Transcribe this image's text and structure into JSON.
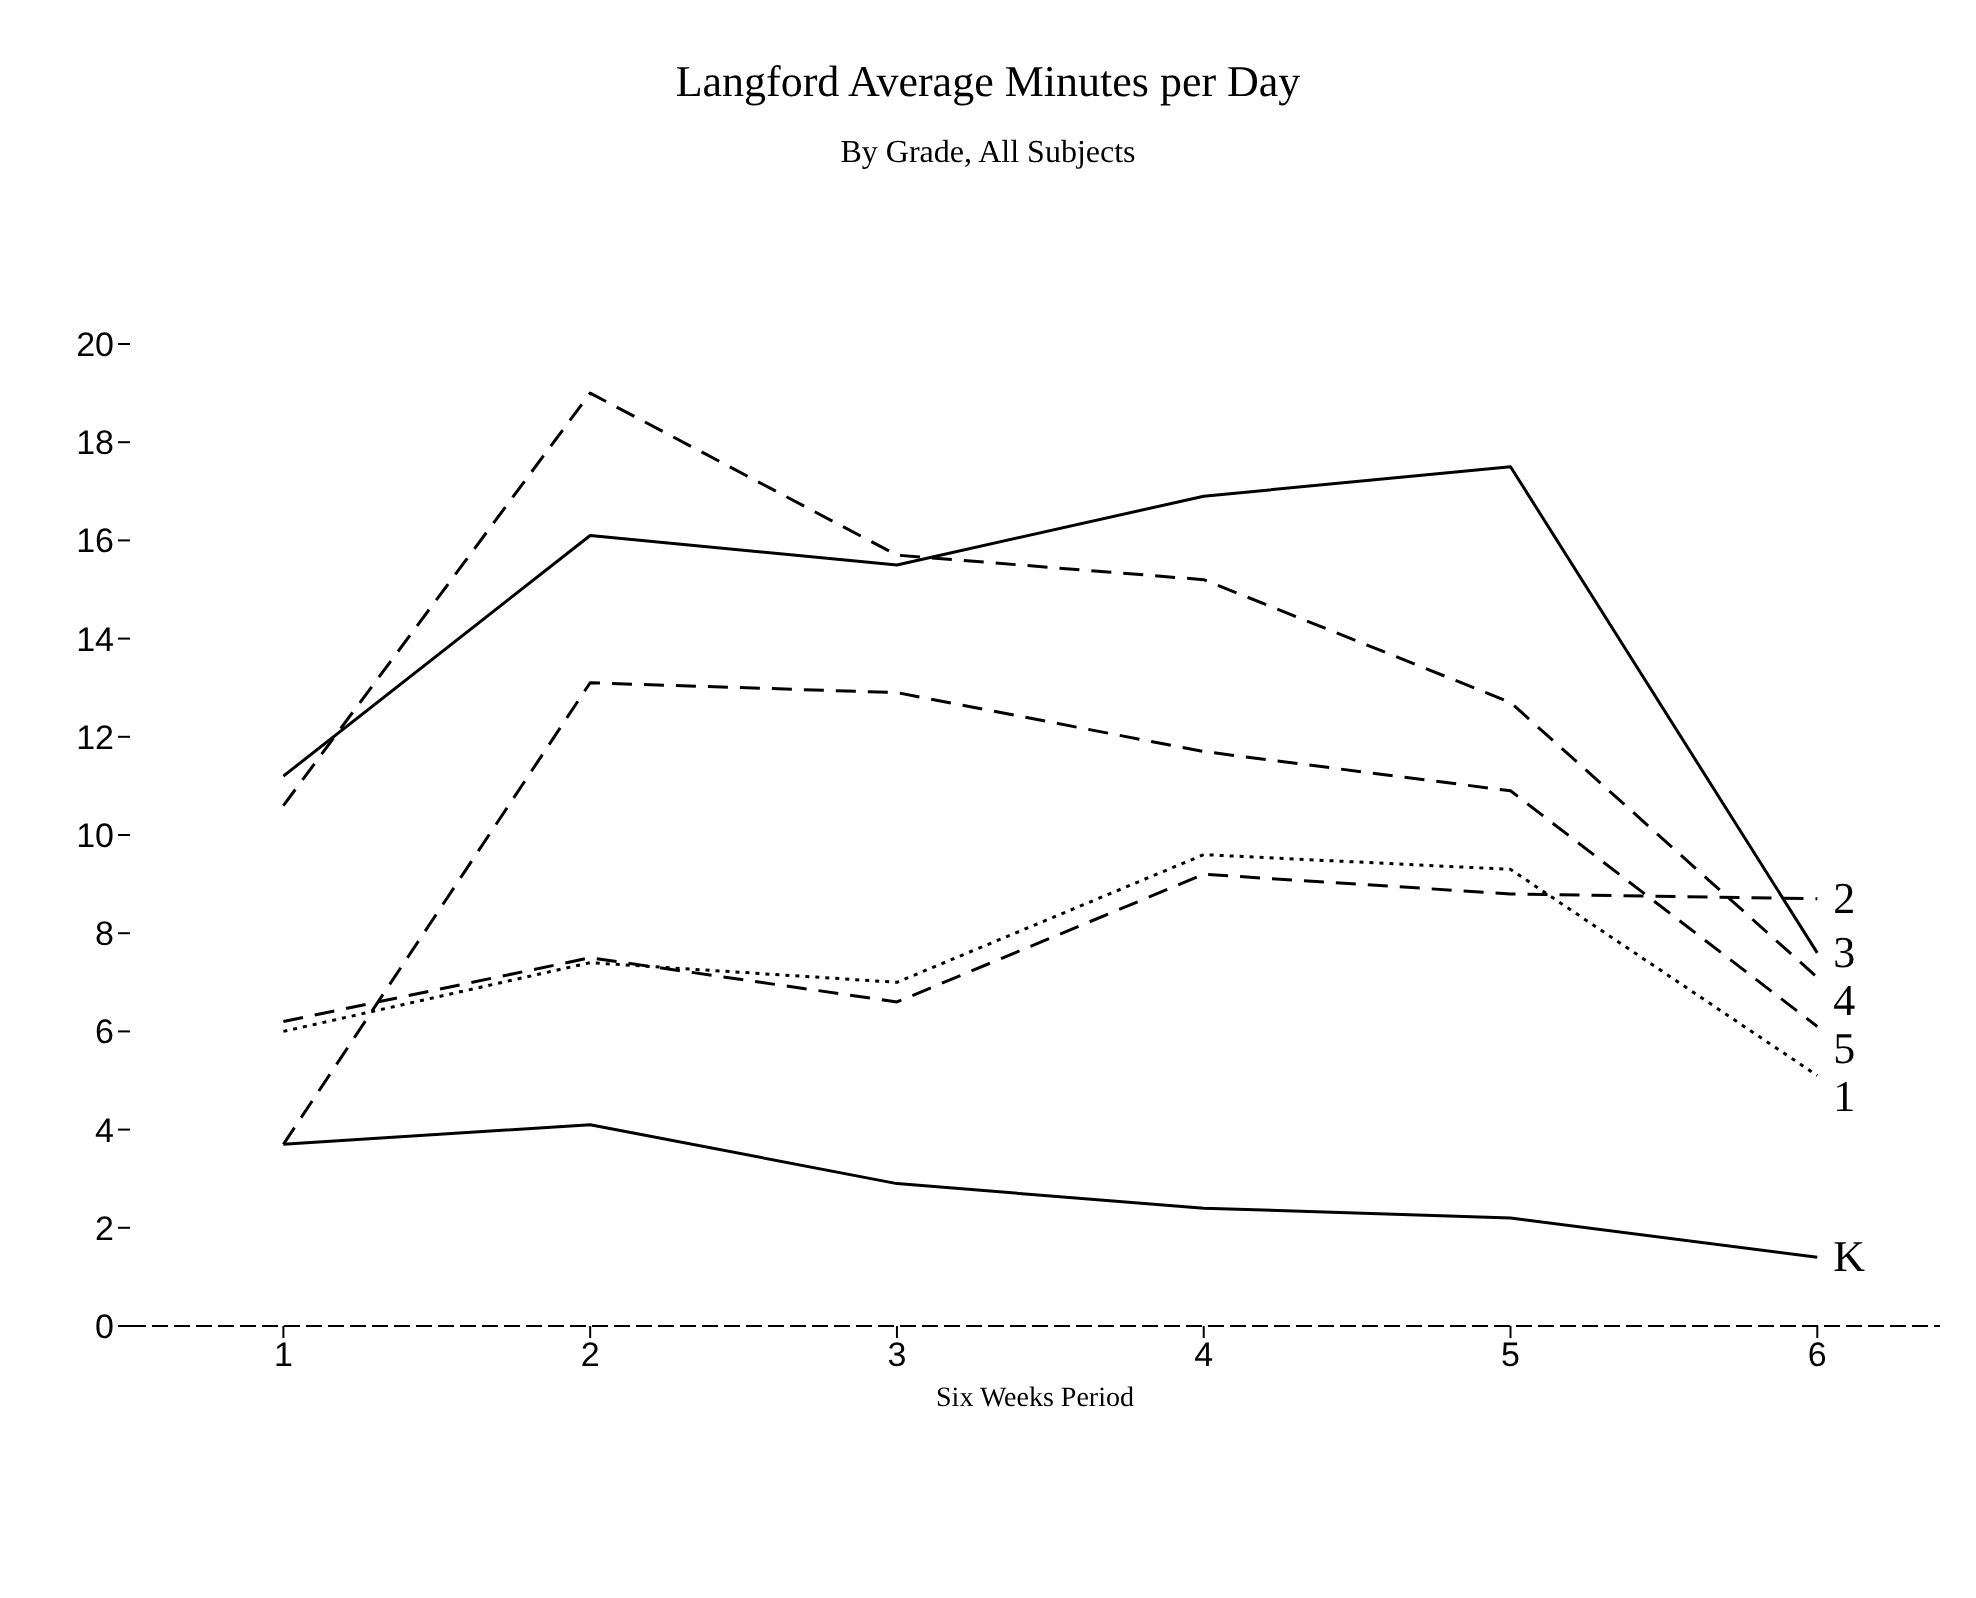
{
  "chart_data": {
    "type": "line",
    "title": "Langford Average Minutes per Day",
    "subtitle": "By Grade, All Subjects",
    "xlabel": "Six Weeks Period",
    "x": [
      1,
      2,
      3,
      4,
      5,
      6
    ],
    "series": [
      {
        "name": "3",
        "color": "#000000",
        "line_style": "solid",
        "values": [
          11.2,
          16.1,
          15.5,
          16.9,
          17.5,
          7.6
        ]
      },
      {
        "name": "4",
        "color": "#000000",
        "line_style": "dashed",
        "values": [
          10.6,
          19.0,
          15.7,
          15.2,
          12.7,
          7.1
        ]
      },
      {
        "name": "5",
        "color": "#000000",
        "line_style": "dashed",
        "values": [
          3.7,
          13.1,
          12.9,
          11.7,
          10.9,
          6.1
        ]
      },
      {
        "name": "1",
        "color": "#000000",
        "line_style": "dotted",
        "values": [
          6.0,
          7.4,
          7.0,
          9.6,
          9.3,
          5.1
        ]
      },
      {
        "name": "2",
        "color": "#000000",
        "line_style": "dashed",
        "values": [
          6.2,
          7.5,
          6.6,
          9.2,
          8.8,
          8.7
        ]
      },
      {
        "name": "K",
        "color": "#000000",
        "line_style": "solid",
        "values": [
          3.7,
          4.1,
          2.9,
          2.4,
          2.2,
          1.4
        ]
      }
    ],
    "xlim": [
      0.5,
      6.4
    ],
    "xticks": [
      1,
      2,
      3,
      4,
      5,
      6
    ],
    "ylim": [
      0,
      20
    ],
    "yticks": [
      0,
      2,
      4,
      6,
      8,
      10,
      12,
      14,
      16,
      18,
      20
    ],
    "grid": false,
    "legend": false,
    "marker": "none"
  }
}
